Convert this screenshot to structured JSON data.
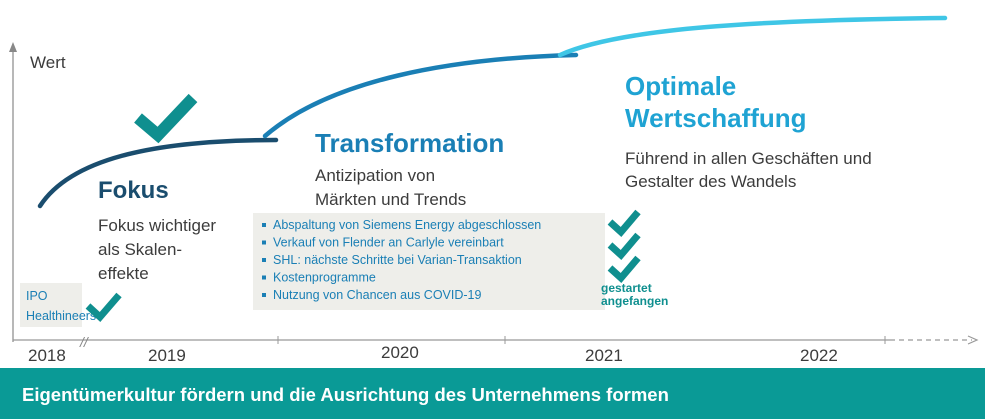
{
  "axis_label": "Wert",
  "phases": [
    {
      "title": "Fokus",
      "description": [
        "Fokus wichtiger",
        "als Skalen-",
        "effekte"
      ]
    },
    {
      "title": "Transformation",
      "description": [
        "Antizipation von",
        "Märkten und Trends"
      ]
    },
    {
      "title": [
        "Optimale",
        "Wertschaffung"
      ],
      "description": [
        "Führend in allen Geschäften und",
        "Gestalter des Wandels"
      ]
    }
  ],
  "bullets": [
    "Abspaltung von Siemens Energy abgeschlossen",
    "Verkauf von Flender an Carlyle vereinbart",
    "SHL: nächste Schritte bei Varian-Transaktion",
    "Kostenprogramme",
    "Nutzung von Chancen aus COVID-19"
  ],
  "status": [
    "gestartet",
    "angefangen"
  ],
  "ipo": [
    "IPO",
    "Healthineers"
  ],
  "years": [
    "2018",
    "2019",
    "2020",
    "2021",
    "2022"
  ],
  "break_mark": "//",
  "footer": "Eigentümerkultur fördern und die Ausrichtung des Unternehmens formen"
}
